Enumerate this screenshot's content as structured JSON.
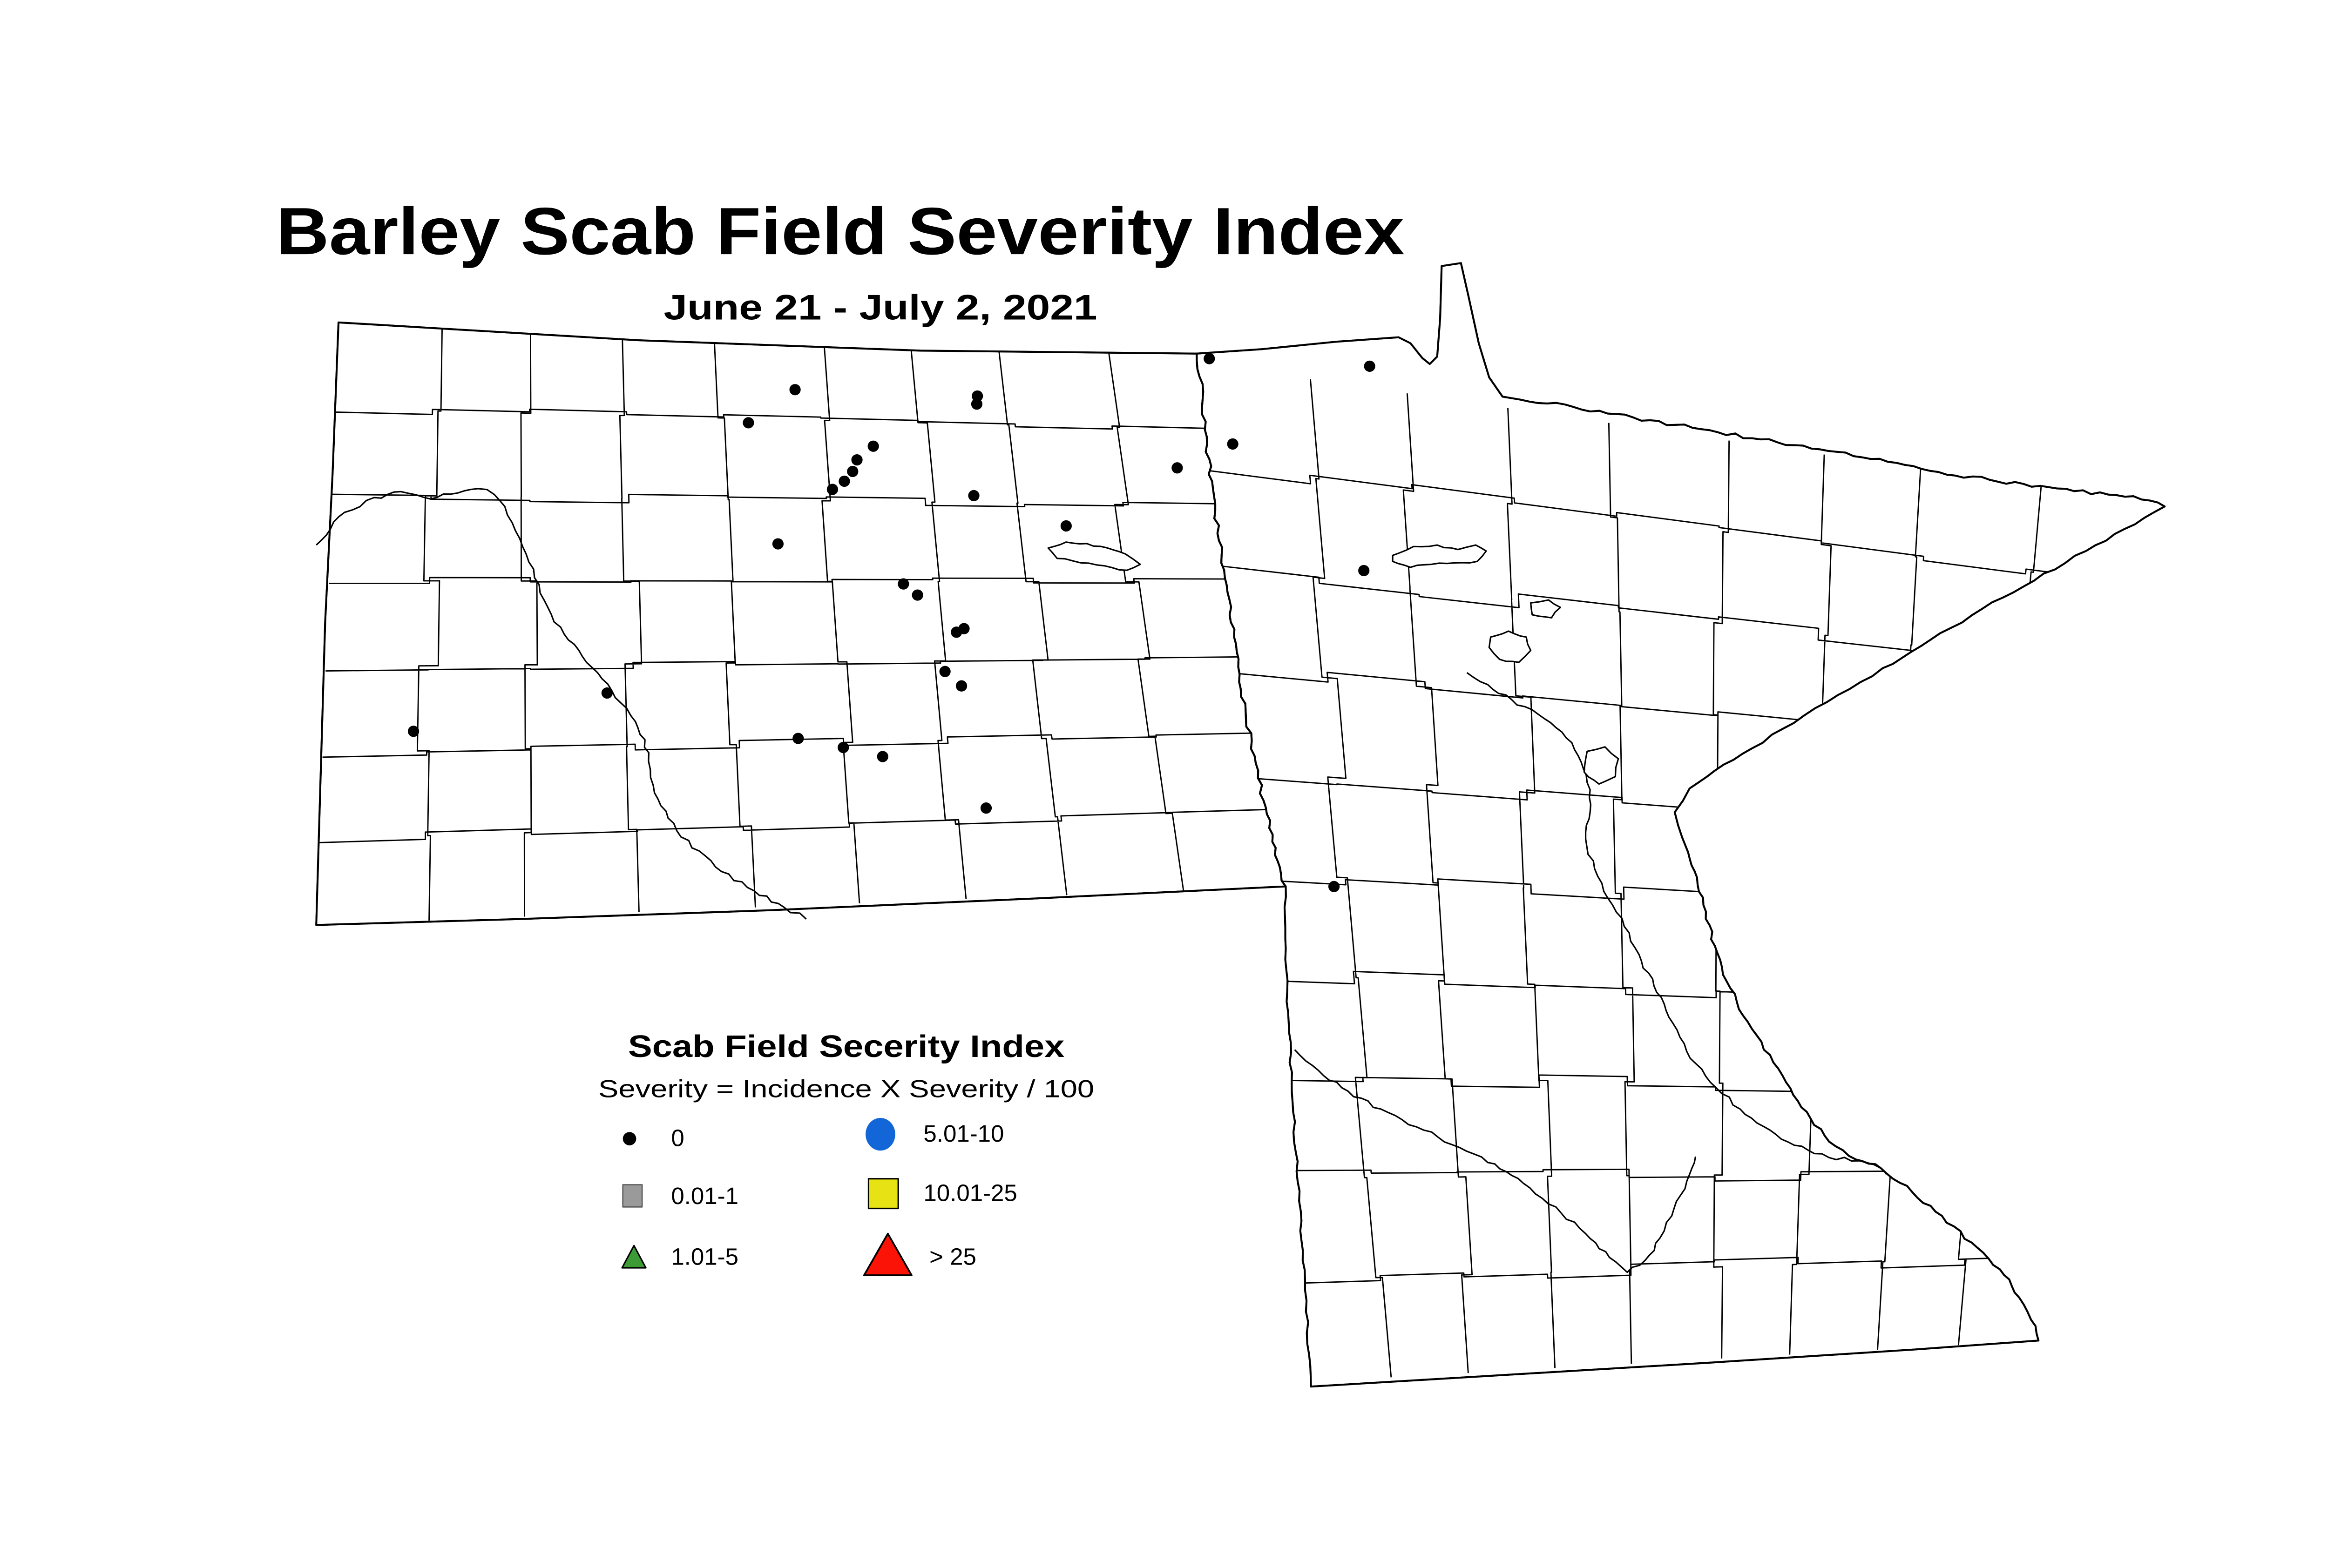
{
  "title": "Barley Scab Field Severity Index",
  "subtitle": "June 21 - July 2, 2021",
  "legend": {
    "title": "Scab Field Secerity Index",
    "formula": "Severity = Incidence X Severity / 100",
    "items": [
      {
        "label": "0",
        "shape": "dot",
        "color": "#000000"
      },
      {
        "label": "0.01-1",
        "shape": "square",
        "color": "#9a9a9a"
      },
      {
        "label": "1.01-5",
        "shape": "triangle",
        "color": "#3d9b35"
      },
      {
        "label": "5.01-10",
        "shape": "circle",
        "color": "#1266d8"
      },
      {
        "label": "10.01-25",
        "shape": "square",
        "color": "#e6e214"
      },
      {
        "label": "> 25",
        "shape": "triangle",
        "color": "#fb1307"
      }
    ]
  },
  "map": {
    "marker": {
      "shape": "dot",
      "color": "#000000",
      "legend_class": "0"
    },
    "points": [
      [
        535.5,
        143.3
      ],
      [
        658.3,
        147.6
      ],
      [
        657.9,
        153.0
      ],
      [
        588.2,
        181.4
      ],
      [
        577.2,
        190.6
      ],
      [
        574.3,
        198.4
      ],
      [
        568.7,
        205.0
      ],
      [
        560.7,
        210.5
      ],
      [
        655.9,
        214.7
      ],
      [
        504.1,
        165.6
      ],
      [
        524.0,
        247.2
      ],
      [
        718.1,
        235.1
      ],
      [
        608.5,
        274.2
      ],
      [
        618.0,
        281.7
      ],
      [
        649.3,
        304.3
      ],
      [
        644.2,
        306.7
      ],
      [
        636.5,
        333.2
      ],
      [
        647.6,
        342.9
      ],
      [
        408.9,
        347.7
      ],
      [
        278.5,
        373.5
      ],
      [
        537.6,
        378.3
      ],
      [
        568.0,
        384.4
      ],
      [
        594.5,
        390.5
      ],
      [
        664.2,
        425.2
      ],
      [
        814.5,
        122.4
      ],
      [
        922.5,
        127.5
      ],
      [
        830.3,
        179.9
      ],
      [
        792.9,
        196.0
      ],
      [
        918.6,
        265.2
      ],
      [
        898.5,
        478.1
      ]
    ]
  }
}
